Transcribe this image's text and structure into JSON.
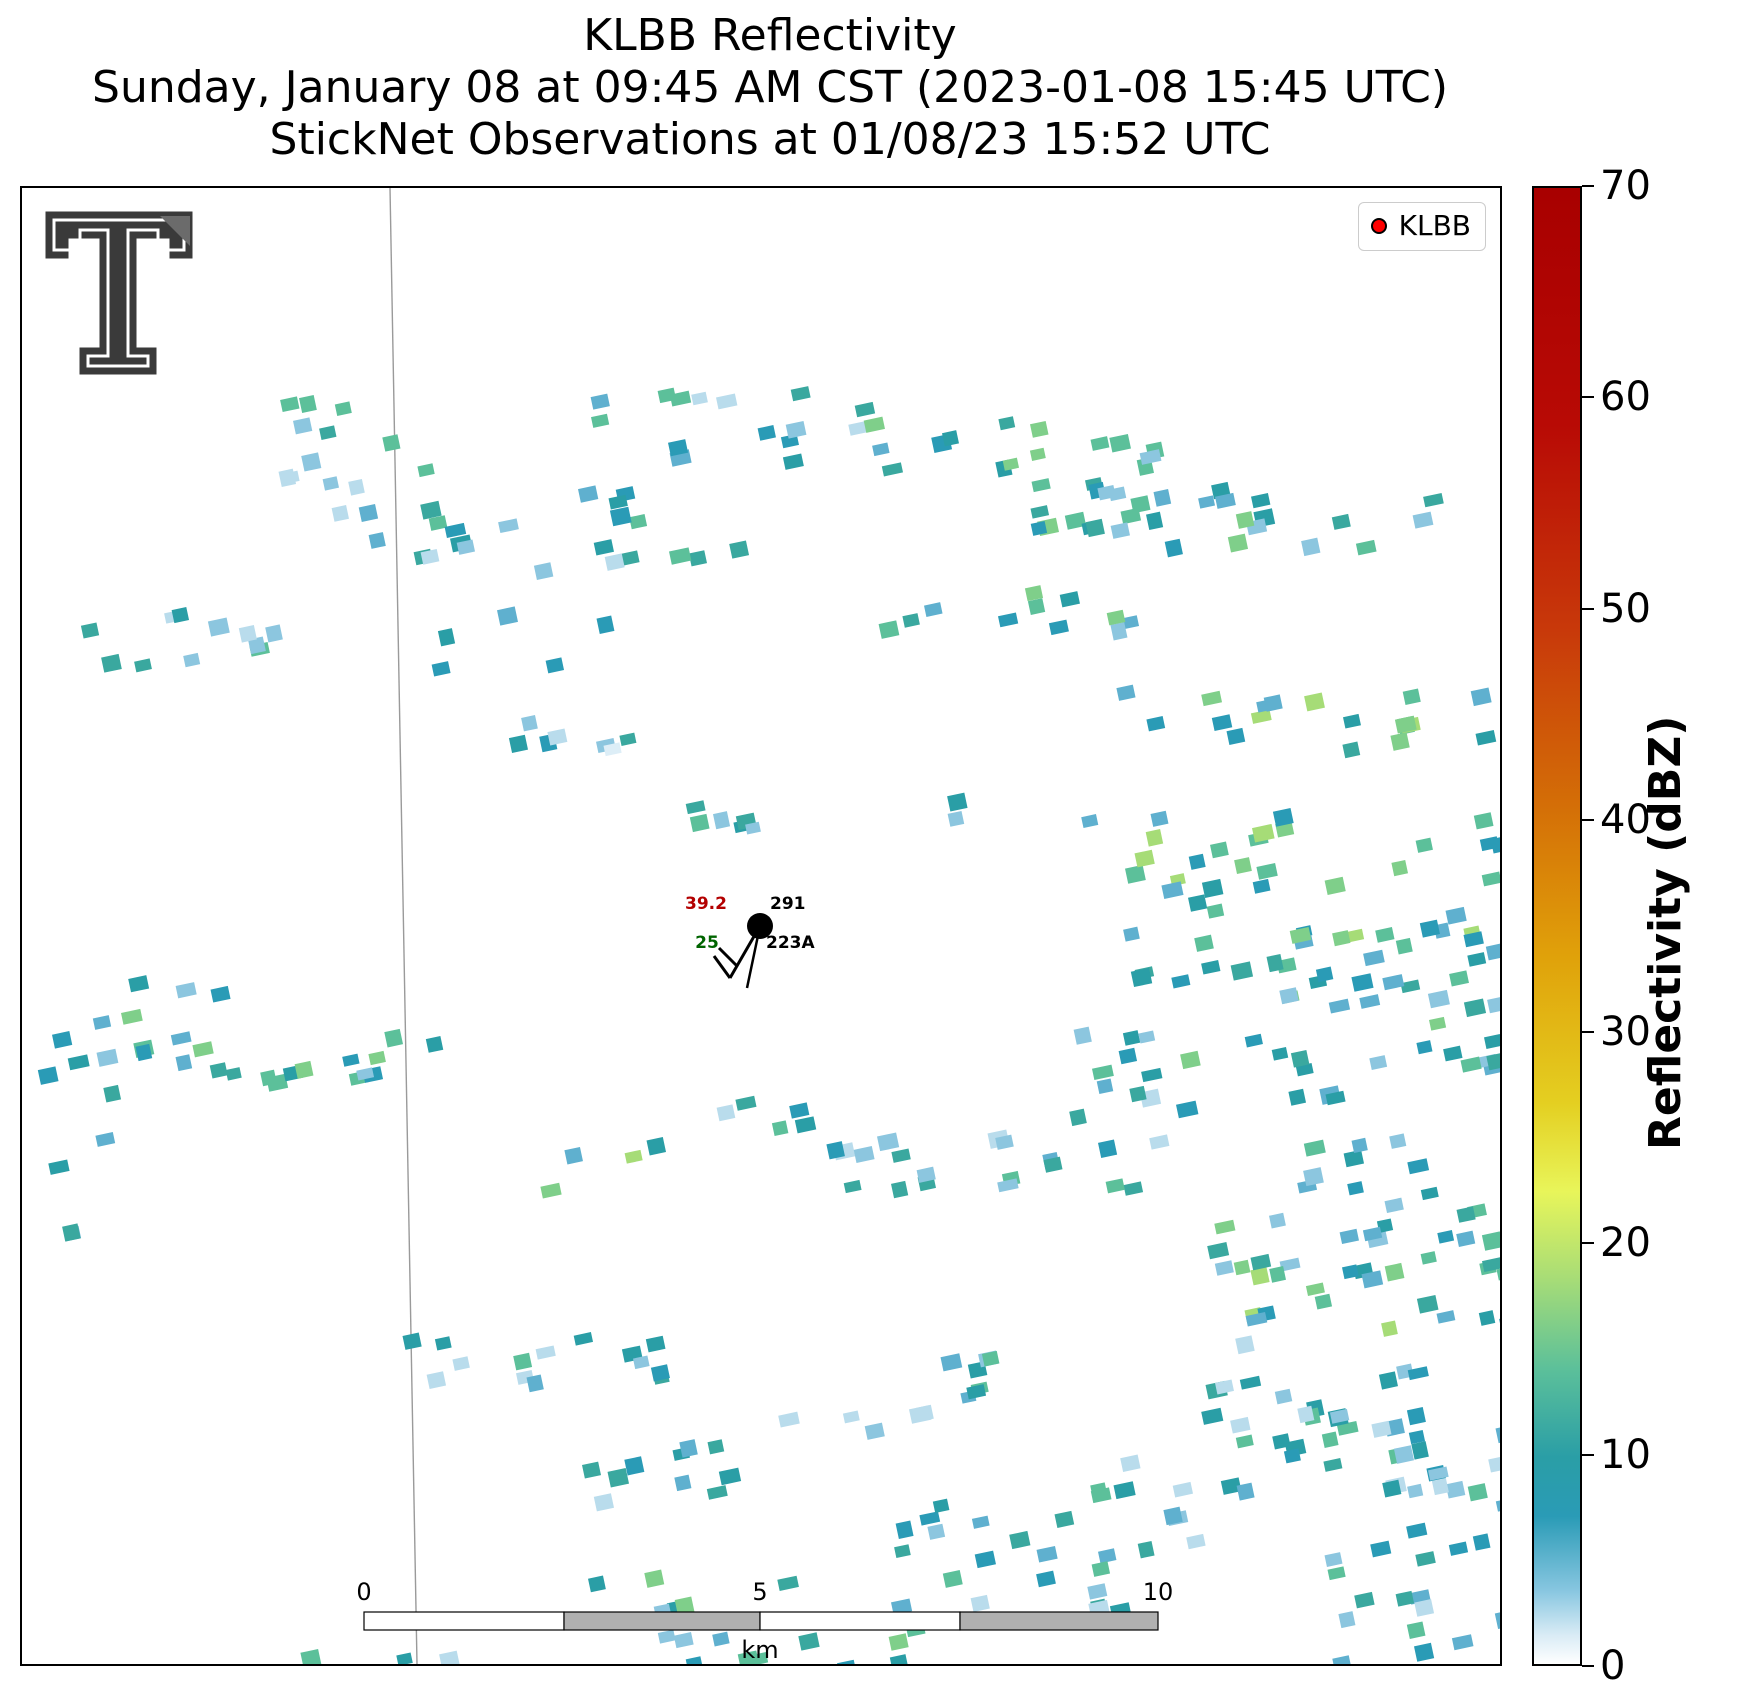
{
  "title": {
    "line1": "KLBB Reflectivity",
    "line2": "Sunday, January 08 at 09:45 AM CST (2023-01-08 15:45 UTC)",
    "line3": "StickNet Observations at 01/08/23 15:52 UTC"
  },
  "legend": {
    "label": "KLBB",
    "marker_color": "#ff0000"
  },
  "colorbar": {
    "title": "Reflectivity (dBZ)",
    "ticks": [
      "0",
      "10",
      "20",
      "30",
      "40",
      "50",
      "60",
      "70"
    ],
    "range": [
      0,
      70
    ]
  },
  "station": {
    "temperature": "39.2",
    "dewpoint": "25",
    "id_upper": "291",
    "id_lower": "223A",
    "temperature_color": "#b30000",
    "dewpoint_color": "#006400"
  },
  "scale_bar": {
    "labels": [
      "0",
      "5",
      "10"
    ],
    "unit": "km"
  },
  "colors": {
    "reflectivity_low": "#c6e2f0",
    "reflectivity_mid": "#2a9bb6",
    "reflectivity_green": "#5cc09a",
    "reflectivity_yellow": "#e8f55a"
  },
  "logo": {
    "icon": "double-t-logo"
  }
}
